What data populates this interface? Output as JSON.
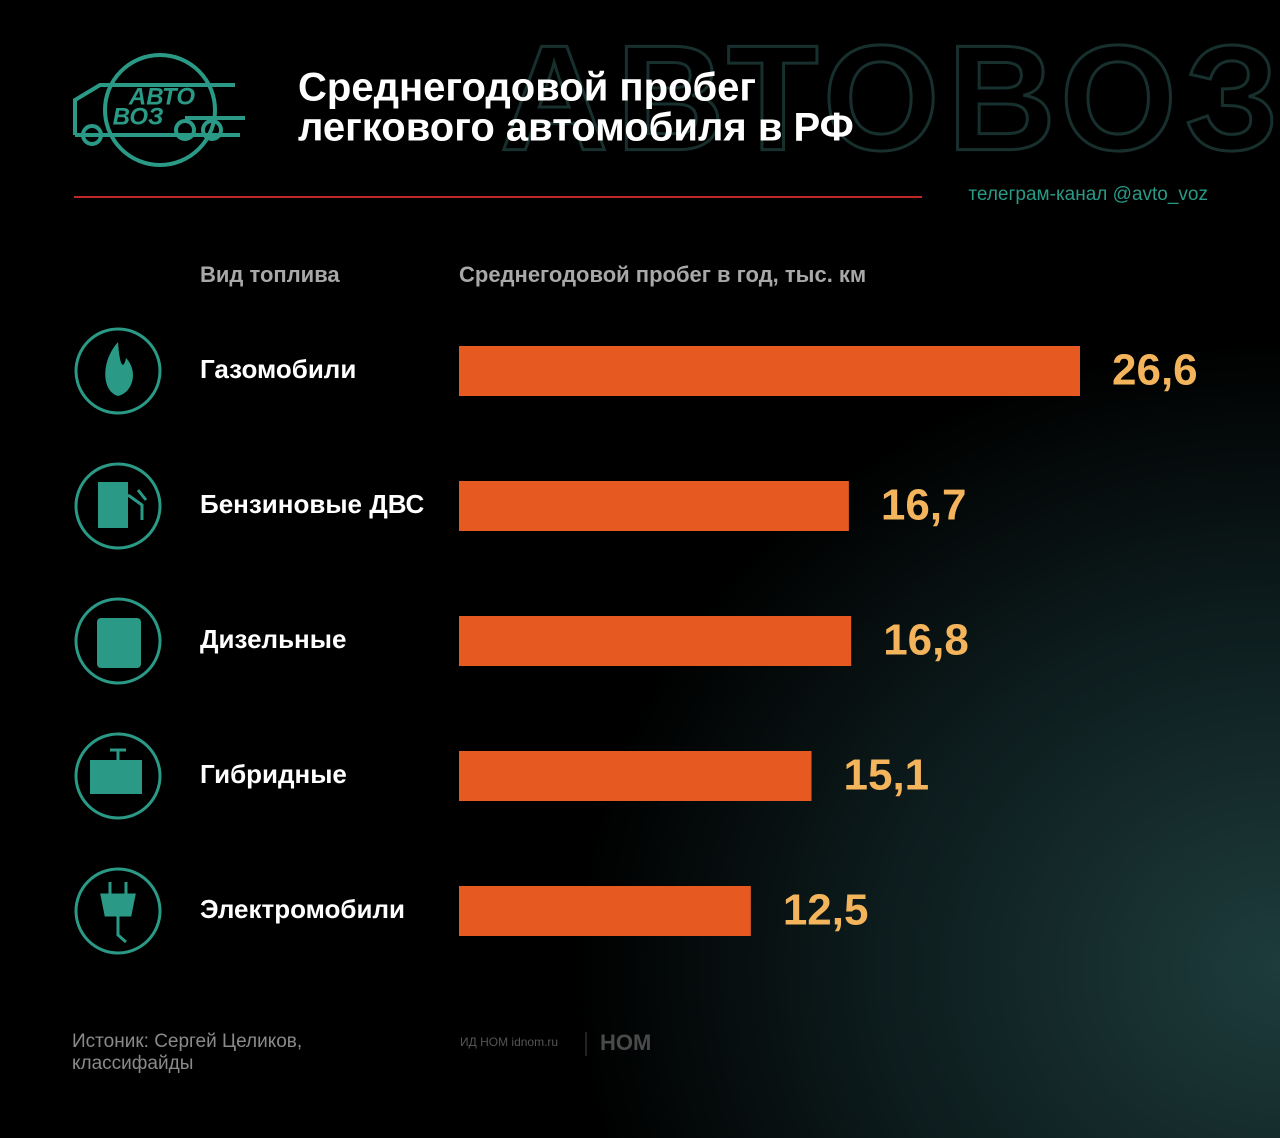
{
  "header": {
    "logo": [
      "АВТО",
      "ВОЗ"
    ],
    "title": [
      "Среднегодовой пробег",
      "легкового автомобиля в РФ"
    ],
    "watermark": "АВТОВОЗ",
    "channel": "телеграм-канал @avto_voz"
  },
  "chart_data": {
    "type": "bar",
    "orientation": "horizontal",
    "category_label": "Вид топлива",
    "value_label": "Среднегодовой пробег в год, тыс. км",
    "categories": [
      "Газомобили",
      "Бензиновые ДВС",
      "Дизельные",
      "Гибридные",
      "Электромобили"
    ],
    "values": [
      26.6,
      16.7,
      16.8,
      15.1,
      12.5
    ],
    "value_labels": [
      "26,6",
      "16,7",
      "16,8",
      "15,1",
      "12,5"
    ],
    "color": "#e65a22",
    "label_color": "#f3b45c"
  },
  "footer": {
    "source": [
      "Истоник: Сергей Целиков,",
      "классифайды"
    ],
    "publisher": "ИД НОМ idnom.ru",
    "brand": "НОМ"
  }
}
